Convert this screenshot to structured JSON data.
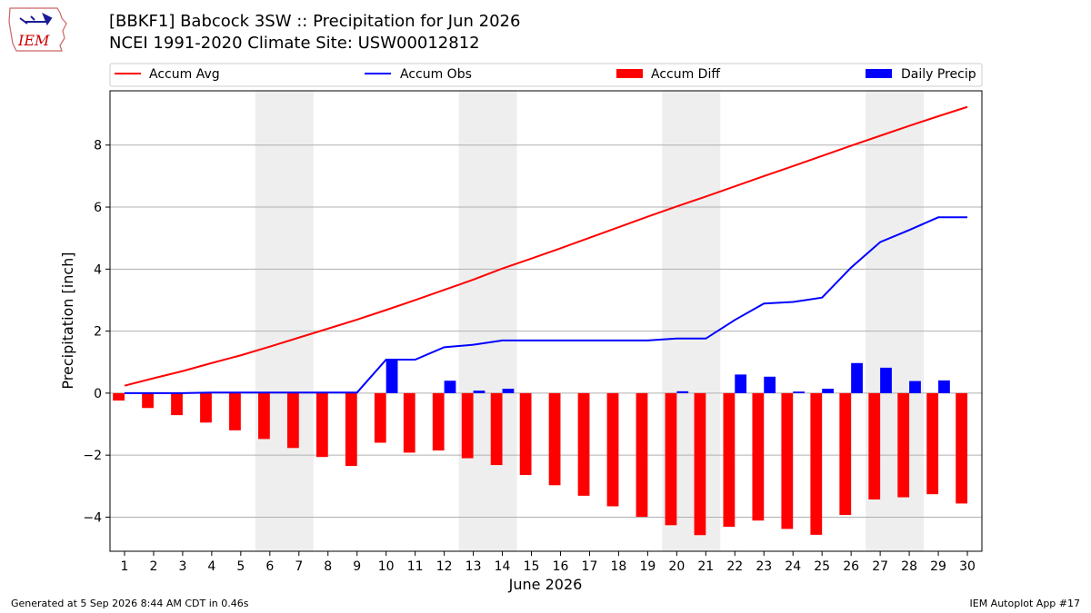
{
  "header": {
    "title": "[BBKF1] Babcock 3SW :: Precipitation for Jun 2026",
    "subtitle": "NCEI 1991-2020 Climate Site: USW00012812"
  },
  "logo": {
    "text": "IEM",
    "color": "#cc0000"
  },
  "footer": {
    "generated": "Generated at 5 Sep 2026 8:44 AM CDT in 0.46s",
    "app": "IEM Autoplot App #17"
  },
  "chart_data": {
    "type": "bar",
    "xlabel": "June 2026",
    "ylabel": "Precipitation [inch]",
    "ylim": [
      -5.1,
      9.75
    ],
    "xlim": [
      0.5,
      30.5
    ],
    "yticks": [
      -4,
      -2,
      0,
      2,
      4,
      6,
      8
    ],
    "grid": true,
    "legend_position": "top",
    "weekend_shading": [
      [
        5.5,
        7.5
      ],
      [
        12.5,
        14.5
      ],
      [
        19.5,
        21.5
      ],
      [
        26.5,
        28.5
      ]
    ],
    "categories": [
      "1",
      "2",
      "3",
      "4",
      "5",
      "6",
      "7",
      "8",
      "9",
      "10",
      "11",
      "12",
      "13",
      "14",
      "15",
      "16",
      "17",
      "18",
      "19",
      "20",
      "21",
      "22",
      "23",
      "24",
      "25",
      "26",
      "27",
      "28",
      "29",
      "30"
    ],
    "series": [
      {
        "name": "Accum Avg",
        "type": "line",
        "color": "#ff0000",
        "values": [
          0.24,
          0.48,
          0.71,
          0.97,
          1.22,
          1.5,
          1.79,
          2.08,
          2.37,
          2.68,
          3.0,
          3.33,
          3.66,
          4.02,
          4.34,
          4.67,
          5.01,
          5.35,
          5.69,
          6.02,
          6.34,
          6.67,
          7.0,
          7.32,
          7.65,
          7.98,
          8.3,
          8.62,
          8.93,
          9.23
        ]
      },
      {
        "name": "Accum Obs",
        "type": "line",
        "color": "#0000ff",
        "values": [
          0,
          0,
          0,
          0.02,
          0.02,
          0.02,
          0.02,
          0.02,
          0.02,
          1.08,
          1.08,
          1.48,
          1.56,
          1.7,
          1.7,
          1.7,
          1.7,
          1.7,
          1.7,
          1.76,
          1.76,
          2.36,
          2.89,
          2.94,
          3.08,
          4.05,
          4.87,
          5.26,
          5.67,
          5.67
        ]
      },
      {
        "name": "Accum Diff",
        "type": "bar",
        "color": "#ff0000",
        "values": [
          -0.24,
          -0.48,
          -0.71,
          -0.95,
          -1.2,
          -1.48,
          -1.77,
          -2.06,
          -2.35,
          -1.6,
          -1.92,
          -1.85,
          -2.1,
          -2.32,
          -2.64,
          -2.97,
          -3.31,
          -3.65,
          -3.99,
          -4.26,
          -4.58,
          -4.31,
          -4.11,
          -4.38,
          -4.57,
          -3.93,
          -3.43,
          -3.36,
          -3.26,
          -3.56
        ]
      },
      {
        "name": "Daily Precip",
        "type": "bar",
        "color": "#0000ff",
        "values": [
          0,
          0,
          0,
          0.02,
          0,
          0,
          0,
          0,
          0,
          1.06,
          0,
          0.4,
          0.08,
          0.14,
          0,
          0,
          0,
          0,
          0,
          0.06,
          0,
          0.6,
          0.53,
          0.05,
          0.14,
          0.97,
          0.82,
          0.39,
          0.41,
          0
        ]
      }
    ]
  }
}
